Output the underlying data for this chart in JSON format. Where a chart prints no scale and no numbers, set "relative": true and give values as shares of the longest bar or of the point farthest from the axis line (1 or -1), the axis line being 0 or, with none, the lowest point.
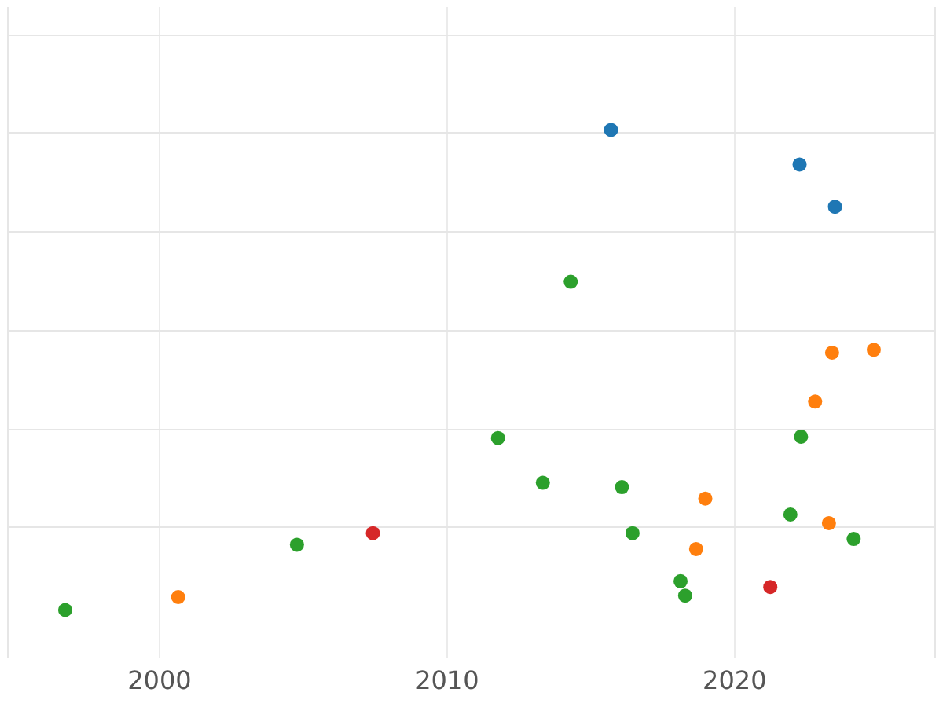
{
  "chart_data": {
    "type": "scatter",
    "relative": true,
    "xlim": [
      1994.7,
      2027
    ],
    "xticks": [
      2000,
      2010,
      2020
    ],
    "grid": true,
    "legend": false,
    "marker": "circle",
    "tick_labels": "x",
    "series": [
      {
        "color": "#1f77b4",
        "x": [
          2015.7,
          2022.26,
          2023.49
        ],
        "values": [
          1.0,
          0.928,
          0.84
        ]
      },
      {
        "color": "#2ca02c",
        "x": [
          1996.72,
          2004.78,
          2011.77,
          2013.33,
          2014.3,
          2016.08,
          2016.45,
          2018.12,
          2018.28,
          2021.94,
          2022.31,
          2024.14
        ],
        "values": [
          0,
          0.136,
          0.358,
          0.265,
          0.684,
          0.256,
          0.16,
          0.06,
          0.03,
          0.199,
          0.361,
          0.148
        ]
      },
      {
        "color": "#ff7f0e",
        "x": [
          2000.65,
          2018.66,
          2018.98,
          2022.8,
          2023.28,
          2023.39,
          2024.84
        ],
        "values": [
          0.027,
          0.127,
          0.232,
          0.434,
          0.181,
          0.536,
          0.542
        ]
      },
      {
        "color": "#d62728",
        "x": [
          2007.42,
          2021.24
        ],
        "values": [
          0.16,
          0.048
        ]
      }
    ]
  }
}
